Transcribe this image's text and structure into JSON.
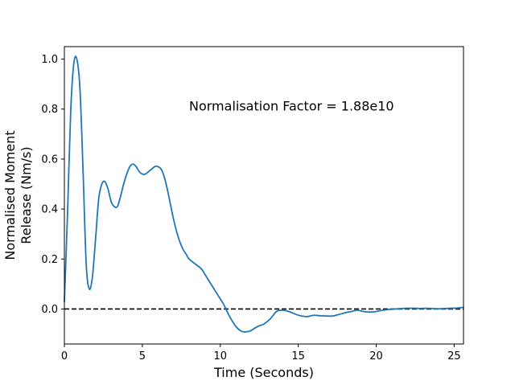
{
  "chart_data": {
    "type": "line",
    "title": "",
    "xlabel": "Time (Seconds)",
    "ylabel_lines": [
      "Normalised Moment",
      "Release (Nm/s)"
    ],
    "xlim": [
      0,
      25.6
    ],
    "ylim": [
      -0.14,
      1.05
    ],
    "xticks": [
      0,
      5,
      10,
      15,
      20,
      25
    ],
    "yticks": [
      0.0,
      0.2,
      0.4,
      0.6,
      0.8,
      1.0
    ],
    "xtick_labels": [
      "0",
      "5",
      "10",
      "15",
      "20",
      "25"
    ],
    "ytick_labels": [
      "0.0",
      "0.2",
      "0.4",
      "0.6",
      "0.8",
      "1.0"
    ],
    "annotation": {
      "text": "Normalisation Factor = 1.88e10",
      "x": 8.0,
      "y": 0.81
    },
    "grid": false,
    "legend": "none",
    "reference_line": {
      "y": 0.0,
      "style": "dashed",
      "color": "#000000"
    },
    "series": [
      {
        "color": "#1f77b4",
        "x": [
          0.0,
          0.2,
          0.4,
          0.6,
          0.8,
          1.0,
          1.2,
          1.4,
          1.6,
          1.8,
          2.0,
          2.2,
          2.4,
          2.6,
          2.8,
          3.0,
          3.2,
          3.4,
          3.6,
          3.8,
          4.0,
          4.2,
          4.4,
          4.6,
          4.8,
          5.0,
          5.2,
          5.4,
          5.6,
          5.8,
          6.0,
          6.2,
          6.4,
          6.6,
          6.8,
          7.0,
          7.2,
          7.4,
          7.6,
          7.8,
          8.0,
          8.4,
          8.8,
          9.0,
          9.4,
          9.8,
          10.2,
          10.6,
          11.0,
          11.4,
          11.8,
          12.0,
          12.4,
          12.8,
          13.2,
          13.6,
          14.0,
          14.4,
          14.8,
          15.2,
          15.6,
          16.0,
          16.4,
          16.8,
          17.2,
          17.6,
          18.0,
          18.4,
          18.8,
          19.2,
          19.6,
          20.0,
          20.4,
          20.8,
          21.2,
          21.6,
          22.0,
          22.4,
          22.8,
          23.2,
          23.6,
          24.0,
          24.4,
          24.8,
          25.2,
          25.6
        ],
        "y": [
          0.03,
          0.38,
          0.78,
          0.98,
          1.0,
          0.88,
          0.55,
          0.18,
          0.08,
          0.13,
          0.28,
          0.44,
          0.5,
          0.51,
          0.48,
          0.43,
          0.41,
          0.41,
          0.45,
          0.5,
          0.54,
          0.57,
          0.58,
          0.57,
          0.55,
          0.54,
          0.54,
          0.55,
          0.56,
          0.57,
          0.57,
          0.56,
          0.53,
          0.48,
          0.42,
          0.36,
          0.31,
          0.27,
          0.24,
          0.22,
          0.2,
          0.18,
          0.16,
          0.14,
          0.1,
          0.06,
          0.02,
          -0.03,
          -0.07,
          -0.09,
          -0.09,
          -0.085,
          -0.07,
          -0.06,
          -0.04,
          -0.01,
          -0.005,
          -0.01,
          -0.02,
          -0.028,
          -0.03,
          -0.025,
          -0.027,
          -0.028,
          -0.028,
          -0.022,
          -0.015,
          -0.01,
          -0.005,
          -0.01,
          -0.012,
          -0.01,
          -0.005,
          -0.002,
          0.0,
          0.002,
          0.003,
          0.003,
          0.002,
          0.003,
          0.002,
          0.001,
          0.002,
          0.003,
          0.004,
          0.007
        ]
      }
    ]
  }
}
